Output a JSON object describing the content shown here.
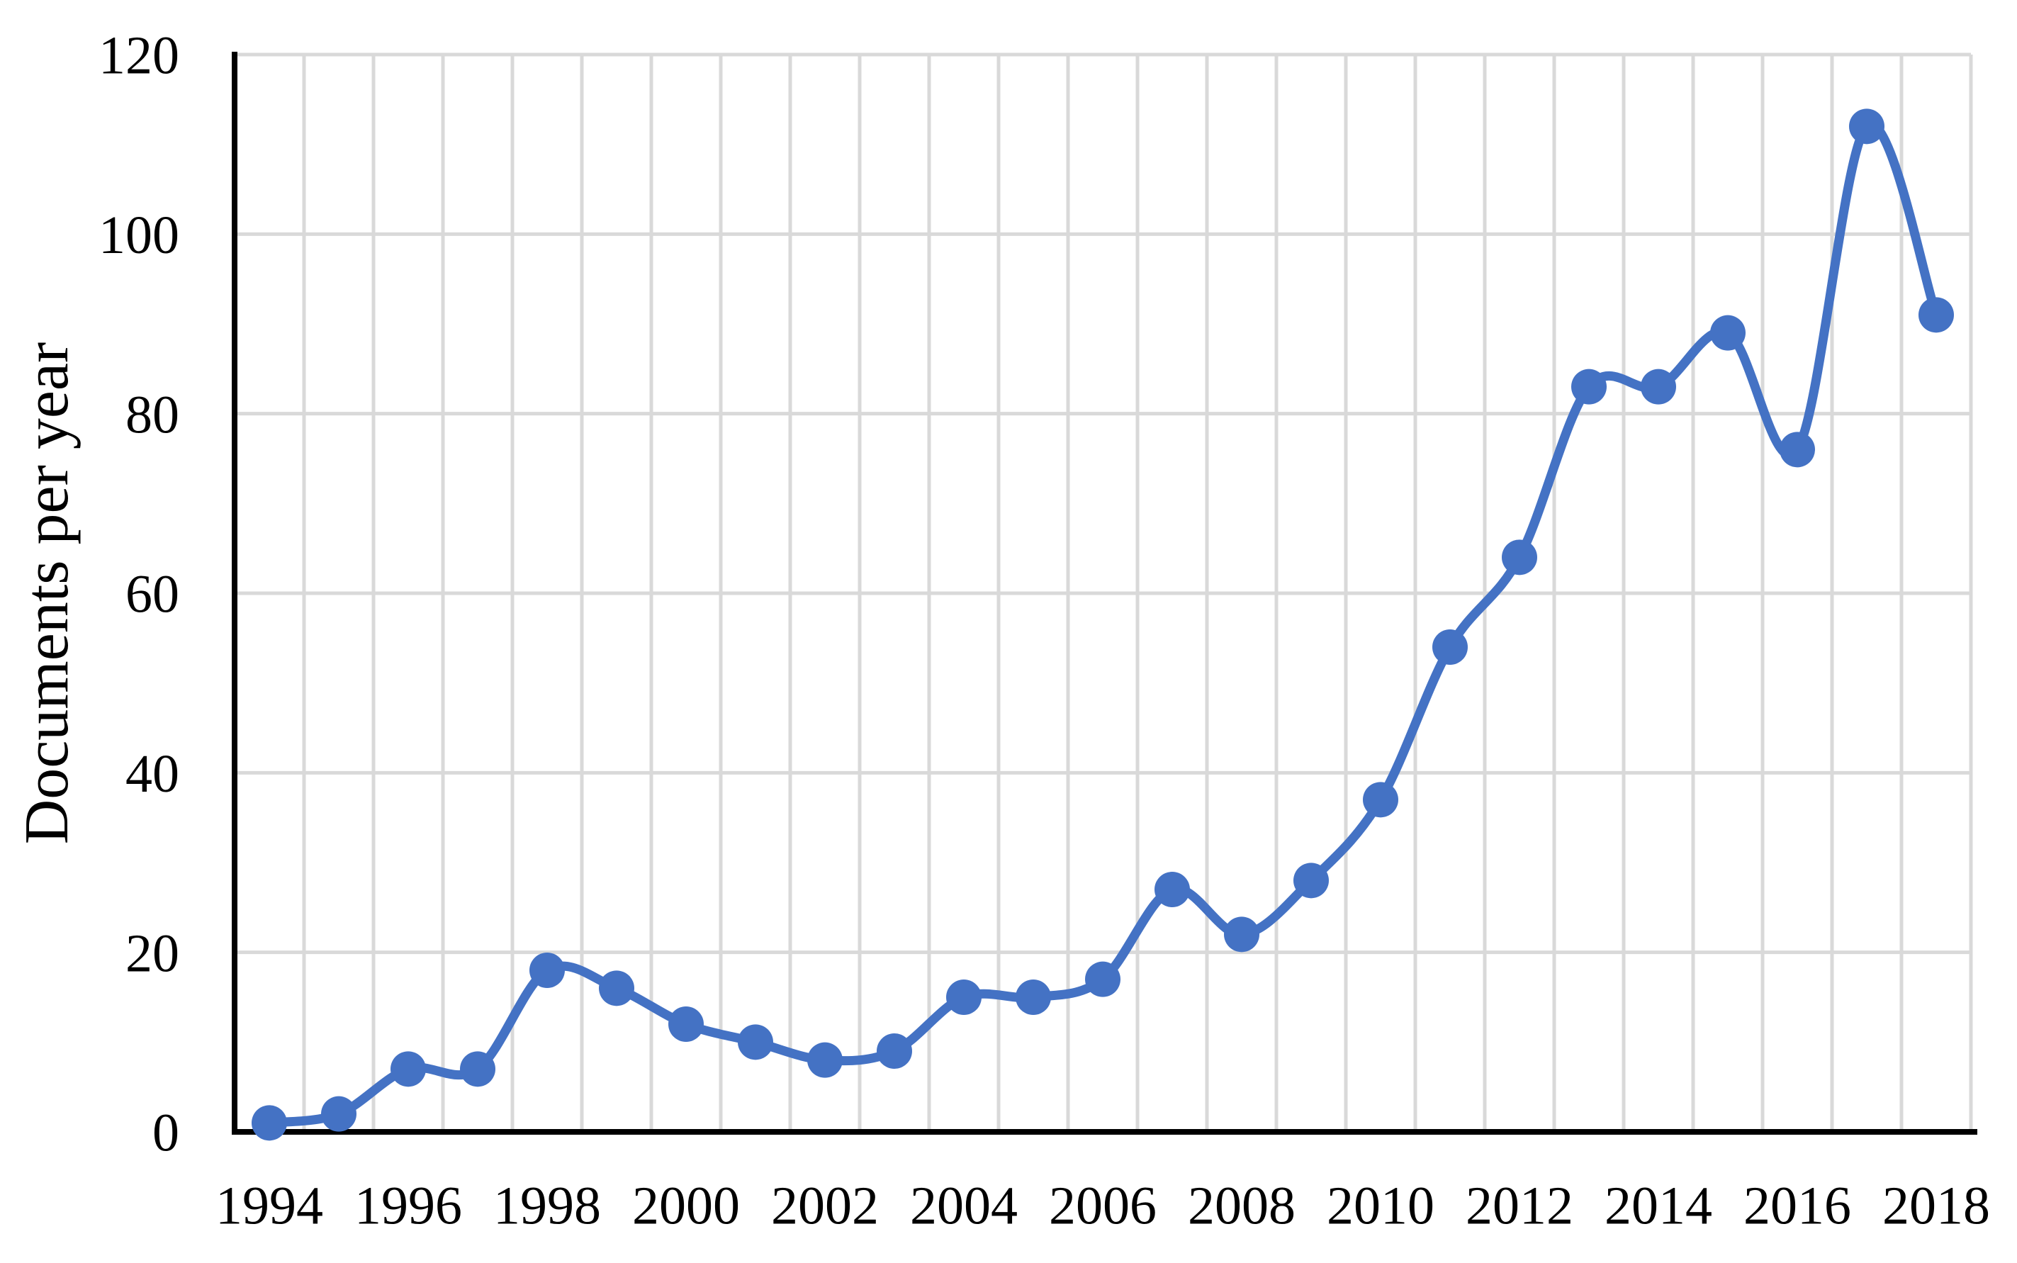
{
  "chart_data": {
    "type": "line",
    "title": "",
    "xlabel": "",
    "ylabel": "Documents per year",
    "x": [
      1994,
      1995,
      1996,
      1997,
      1998,
      1999,
      2000,
      2001,
      2002,
      2003,
      2004,
      2005,
      2006,
      2007,
      2008,
      2009,
      2010,
      2011,
      2012,
      2013,
      2014,
      2015,
      2016,
      2017,
      2018
    ],
    "series": [
      {
        "name": "Documents per year",
        "values": [
          1,
          2,
          7,
          7,
          18,
          16,
          12,
          10,
          8,
          9,
          15,
          15,
          17,
          27,
          22,
          28,
          37,
          54,
          64,
          83,
          83,
          89,
          76,
          112,
          91
        ]
      }
    ],
    "ylim": [
      0,
      120
    ],
    "yticks": [
      0,
      20,
      40,
      60,
      80,
      100,
      120
    ],
    "xtick_labels": [
      "1994",
      "1996",
      "1998",
      "2000",
      "2002",
      "2004",
      "2006",
      "2008",
      "2010",
      "2012",
      "2014",
      "2016",
      "2018"
    ],
    "xtick_every": 2,
    "grid": "major-xy",
    "legend_position": "none",
    "line_smoothed": true,
    "marker_shape": "circle"
  },
  "style": {
    "series_color": "#4472C4",
    "grid_color": "#D9D9D9",
    "axis_color": "#000000",
    "text_color": "#000000",
    "background_color": "#FFFFFF"
  }
}
